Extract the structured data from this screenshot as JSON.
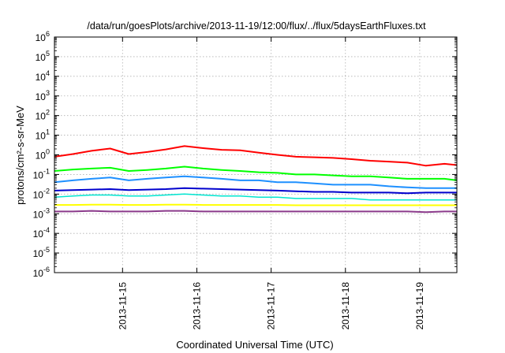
{
  "chart_data": {
    "type": "line",
    "title": "/data/run/goesPlots/archive/2013-11-19/12:00/flux/../flux/5daysEarthFluxes.txt",
    "xlabel": "Coordinated Universal Time (UTC)",
    "ylabel": "protons/cm²-s-sr-MeV",
    "yscale": "log",
    "ylim": [
      1e-06,
      1000000.0
    ],
    "xlim": [
      "2013-11-14T02:00",
      "2013-11-19T12:00"
    ],
    "grid": true,
    "legend": "none",
    "x_ticks": [
      "2013-11-15",
      "2013-11-16",
      "2013-11-17",
      "2013-11-18",
      "2013-11-19"
    ],
    "y_ticks": [
      {
        "base": "10",
        "exp": "-6"
      },
      {
        "base": "10",
        "exp": "-5"
      },
      {
        "base": "10",
        "exp": "-4"
      },
      {
        "base": "10",
        "exp": "-3"
      },
      {
        "base": "10",
        "exp": "-2"
      },
      {
        "base": "10",
        "exp": "-1"
      },
      {
        "base": "10",
        "exp": "0"
      },
      {
        "base": "10",
        "exp": "1"
      },
      {
        "base": "10",
        "exp": "2"
      },
      {
        "base": "10",
        "exp": "3"
      },
      {
        "base": "10",
        "exp": "4"
      },
      {
        "base": "10",
        "exp": "5"
      },
      {
        "base": "10",
        "exp": "6"
      }
    ],
    "series": [
      {
        "color": "#ff0000",
        "width": 2,
        "x": [
          "2013-11-14T02:00",
          "2013-11-14T08:00",
          "2013-11-14T14:00",
          "2013-11-14T20:00",
          "2013-11-15T02:00",
          "2013-11-15T08:00",
          "2013-11-15T14:00",
          "2013-11-15T20:00",
          "2013-11-16T02:00",
          "2013-11-16T08:00",
          "2013-11-16T14:00",
          "2013-11-16T20:00",
          "2013-11-17T02:00",
          "2013-11-17T08:00",
          "2013-11-17T14:00",
          "2013-11-17T20:00",
          "2013-11-18T02:00",
          "2013-11-18T08:00",
          "2013-11-18T14:00",
          "2013-11-18T20:00",
          "2013-11-19T02:00",
          "2013-11-19T08:00",
          "2013-11-19T12:00"
        ],
        "values": [
          0.8,
          1.1,
          1.6,
          2.1,
          1.1,
          1.4,
          1.9,
          2.8,
          2.2,
          1.8,
          1.7,
          1.3,
          1.0,
          0.8,
          0.75,
          0.7,
          0.6,
          0.5,
          0.45,
          0.4,
          0.28,
          0.35,
          0.3
        ]
      },
      {
        "color": "#00ff00",
        "width": 2,
        "x": [
          "2013-11-14T02:00",
          "2013-11-14T08:00",
          "2013-11-14T14:00",
          "2013-11-14T20:00",
          "2013-11-15T02:00",
          "2013-11-15T08:00",
          "2013-11-15T14:00",
          "2013-11-15T20:00",
          "2013-11-16T02:00",
          "2013-11-16T08:00",
          "2013-11-16T14:00",
          "2013-11-16T20:00",
          "2013-11-17T02:00",
          "2013-11-17T08:00",
          "2013-11-17T14:00",
          "2013-11-17T20:00",
          "2013-11-18T02:00",
          "2013-11-18T08:00",
          "2013-11-18T14:00",
          "2013-11-18T20:00",
          "2013-11-19T02:00",
          "2013-11-19T08:00",
          "2013-11-19T12:00"
        ],
        "values": [
          0.15,
          0.18,
          0.2,
          0.22,
          0.15,
          0.17,
          0.2,
          0.25,
          0.2,
          0.17,
          0.15,
          0.13,
          0.12,
          0.1,
          0.1,
          0.09,
          0.08,
          0.08,
          0.07,
          0.06,
          0.06,
          0.06,
          0.05
        ]
      },
      {
        "color": "#1e90ff",
        "width": 2,
        "x": [
          "2013-11-14T02:00",
          "2013-11-14T08:00",
          "2013-11-14T14:00",
          "2013-11-14T20:00",
          "2013-11-15T02:00",
          "2013-11-15T08:00",
          "2013-11-15T14:00",
          "2013-11-15T20:00",
          "2013-11-16T02:00",
          "2013-11-16T08:00",
          "2013-11-16T14:00",
          "2013-11-16T20:00",
          "2013-11-17T02:00",
          "2013-11-17T08:00",
          "2013-11-17T14:00",
          "2013-11-17T20:00",
          "2013-11-18T02:00",
          "2013-11-18T08:00",
          "2013-11-18T14:00",
          "2013-11-18T20:00",
          "2013-11-19T02:00",
          "2013-11-19T08:00",
          "2013-11-19T12:00"
        ],
        "values": [
          0.04,
          0.05,
          0.06,
          0.07,
          0.05,
          0.06,
          0.07,
          0.08,
          0.07,
          0.06,
          0.05,
          0.05,
          0.04,
          0.04,
          0.035,
          0.03,
          0.03,
          0.03,
          0.025,
          0.022,
          0.02,
          0.02,
          0.02
        ]
      },
      {
        "color": "#00e5d0",
        "width": 1.5,
        "x": [
          "2013-11-14T02:00",
          "2013-11-14T08:00",
          "2013-11-14T14:00",
          "2013-11-14T20:00",
          "2013-11-15T02:00",
          "2013-11-15T08:00",
          "2013-11-15T14:00",
          "2013-11-15T20:00",
          "2013-11-16T02:00",
          "2013-11-16T08:00",
          "2013-11-16T14:00",
          "2013-11-16T20:00",
          "2013-11-17T02:00",
          "2013-11-17T08:00",
          "2013-11-17T14:00",
          "2013-11-17T20:00",
          "2013-11-18T02:00",
          "2013-11-18T08:00",
          "2013-11-18T14:00",
          "2013-11-18T20:00",
          "2013-11-19T02:00",
          "2013-11-19T08:00",
          "2013-11-19T12:00"
        ],
        "values": [
          0.007,
          0.008,
          0.009,
          0.009,
          0.008,
          0.008,
          0.009,
          0.01,
          0.009,
          0.008,
          0.008,
          0.007,
          0.007,
          0.006,
          0.006,
          0.006,
          0.006,
          0.005,
          0.005,
          0.005,
          0.005,
          0.005,
          0.005
        ]
      },
      {
        "color": "#0000cd",
        "width": 2,
        "x": [
          "2013-11-14T02:00",
          "2013-11-14T08:00",
          "2013-11-14T14:00",
          "2013-11-14T20:00",
          "2013-11-15T02:00",
          "2013-11-15T08:00",
          "2013-11-15T14:00",
          "2013-11-15T20:00",
          "2013-11-16T02:00",
          "2013-11-16T08:00",
          "2013-11-16T14:00",
          "2013-11-16T20:00",
          "2013-11-17T02:00",
          "2013-11-17T08:00",
          "2013-11-17T14:00",
          "2013-11-17T20:00",
          "2013-11-18T02:00",
          "2013-11-18T08:00",
          "2013-11-18T14:00",
          "2013-11-18T20:00",
          "2013-11-19T02:00",
          "2013-11-19T08:00",
          "2013-11-19T12:00"
        ],
        "values": [
          0.015,
          0.016,
          0.017,
          0.018,
          0.016,
          0.017,
          0.018,
          0.02,
          0.019,
          0.018,
          0.017,
          0.016,
          0.015,
          0.014,
          0.013,
          0.013,
          0.012,
          0.012,
          0.012,
          0.011,
          0.012,
          0.012,
          0.012
        ]
      },
      {
        "color": "#ffff00",
        "width": 2,
        "x": [
          "2013-11-14T02:00",
          "2013-11-14T08:00",
          "2013-11-14T14:00",
          "2013-11-14T20:00",
          "2013-11-15T02:00",
          "2013-11-15T08:00",
          "2013-11-15T14:00",
          "2013-11-15T20:00",
          "2013-11-16T02:00",
          "2013-11-16T08:00",
          "2013-11-16T14:00",
          "2013-11-16T20:00",
          "2013-11-17T02:00",
          "2013-11-17T08:00",
          "2013-11-17T14:00",
          "2013-11-17T20:00",
          "2013-11-18T02:00",
          "2013-11-18T08:00",
          "2013-11-18T14:00",
          "2013-11-18T20:00",
          "2013-11-19T02:00",
          "2013-11-19T08:00",
          "2013-11-19T12:00"
        ],
        "values": [
          0.0028,
          0.0028,
          0.0029,
          0.0029,
          0.0028,
          0.0028,
          0.0029,
          0.0029,
          0.0028,
          0.0028,
          0.0028,
          0.0028,
          0.0028,
          0.0027,
          0.0027,
          0.0027,
          0.0027,
          0.0027,
          0.0027,
          0.0027,
          0.0027,
          0.0027,
          0.0027
        ]
      },
      {
        "color": "#8b3a8b",
        "width": 2,
        "x": [
          "2013-11-14T02:00",
          "2013-11-14T08:00",
          "2013-11-14T14:00",
          "2013-11-14T20:00",
          "2013-11-15T02:00",
          "2013-11-15T08:00",
          "2013-11-15T14:00",
          "2013-11-15T20:00",
          "2013-11-16T02:00",
          "2013-11-16T08:00",
          "2013-11-16T14:00",
          "2013-11-16T20:00",
          "2013-11-17T02:00",
          "2013-11-17T08:00",
          "2013-11-17T14:00",
          "2013-11-17T20:00",
          "2013-11-18T02:00",
          "2013-11-18T08:00",
          "2013-11-18T14:00",
          "2013-11-18T20:00",
          "2013-11-19T02:00",
          "2013-11-19T08:00",
          "2013-11-19T12:00"
        ],
        "values": [
          0.0013,
          0.0013,
          0.0014,
          0.0013,
          0.0013,
          0.0013,
          0.0014,
          0.0014,
          0.0013,
          0.0013,
          0.0013,
          0.0013,
          0.0013,
          0.0013,
          0.0013,
          0.0013,
          0.0013,
          0.0013,
          0.0013,
          0.0013,
          0.0012,
          0.0013,
          0.0013
        ]
      }
    ]
  }
}
